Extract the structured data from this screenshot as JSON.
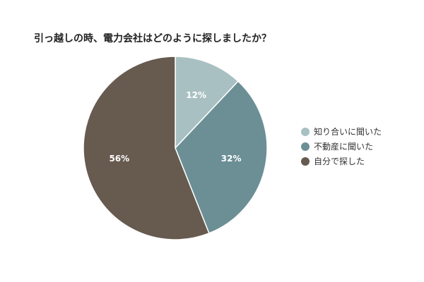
{
  "chart_data": {
    "type": "pie",
    "title": "引っ越しの時、電力会社はどのように探しましたか？",
    "slices": [
      {
        "name": "知り合いに聞いた",
        "value": 12,
        "label": "12%",
        "color": "#a9c0c2"
      },
      {
        "name": "不動産に聞いた",
        "value": 32,
        "label": "32%",
        "color": "#6b8f95"
      },
      {
        "name": "自分で探した",
        "value": 56,
        "label": "56%",
        "color": "#675a4f"
      }
    ],
    "legend_placement": "right"
  }
}
